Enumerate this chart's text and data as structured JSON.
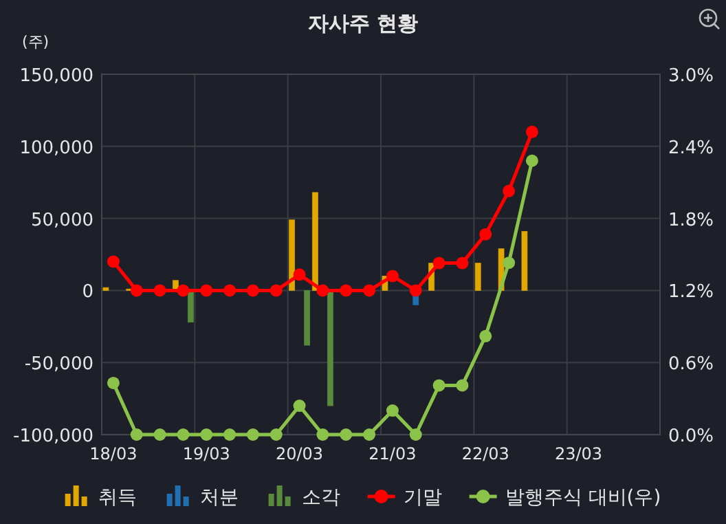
{
  "chart_data": {
    "type": "bar",
    "title": "자사주 현황",
    "ylabel": "(주)",
    "categories": [
      "18/03",
      null,
      null,
      null,
      "19/03",
      null,
      null,
      null,
      "20/03",
      null,
      null,
      null,
      "21/03",
      null,
      null,
      null,
      "22/03",
      null,
      null,
      null,
      "23/03",
      null,
      null,
      null
    ],
    "series": [
      {
        "name": "취득",
        "color": "#e0a800",
        "values": [
          2000,
          1000,
          null,
          7000,
          null,
          null,
          null,
          null,
          49000,
          68000,
          null,
          null,
          10000,
          null,
          19000,
          null,
          19000,
          29000,
          41000,
          null,
          null,
          null,
          null,
          null
        ]
      },
      {
        "name": "처분",
        "color": "#1f6fb2",
        "values": [
          null,
          null,
          null,
          null,
          null,
          null,
          null,
          null,
          null,
          null,
          null,
          null,
          null,
          -10000,
          null,
          null,
          null,
          null,
          null,
          null,
          null,
          null,
          null,
          null
        ]
      },
      {
        "name": "소각",
        "color": "#5a8a3c",
        "values": [
          null,
          null,
          null,
          -22000,
          null,
          null,
          null,
          null,
          -38000,
          -80000,
          null,
          null,
          null,
          null,
          null,
          null,
          null,
          null,
          null,
          null,
          null,
          null,
          null,
          null
        ]
      },
      {
        "name": "기말",
        "type": "line",
        "color": "#ff0000",
        "values": [
          20000,
          0,
          0,
          0,
          0,
          0,
          0,
          0,
          11000,
          0,
          0,
          0,
          10000,
          0,
          19000,
          19000,
          39000,
          69000,
          110000,
          null,
          null,
          null,
          null,
          null
        ]
      },
      {
        "name": "발행주식 대비(우)",
        "type": "line",
        "axis": "y2",
        "color": "#8bc34a",
        "values": [
          0.43,
          0,
          0,
          0,
          0,
          0,
          0,
          0,
          0.24,
          0,
          0,
          0,
          0.2,
          0,
          0.41,
          0.41,
          0.82,
          1.43,
          2.28,
          null,
          null,
          null,
          null,
          null
        ]
      }
    ],
    "ylim": [
      -100000,
      150000
    ],
    "yticks": [
      {
        "value": -100000,
        "label": "-100,000"
      },
      {
        "value": -50000,
        "label": "-50,000"
      },
      0,
      {
        "value": 50000,
        "label": "50,000"
      },
      {
        "value": 100000,
        "label": "100,000"
      },
      {
        "value": 150000,
        "label": "150,000"
      }
    ],
    "y2lim": [
      0,
      3
    ],
    "y2ticks": [
      {
        "value": 0,
        "label": "0.0%"
      },
      {
        "value": 0.6,
        "label": "0.6%"
      },
      {
        "value": 1.2,
        "label": "1.2%"
      },
      {
        "value": 1.8,
        "label": "1.8%"
      },
      {
        "value": 2.4,
        "label": "2.4%"
      },
      {
        "value": 3,
        "label": "3.0%"
      }
    ],
    "grid": true,
    "legend": "bottom",
    "marker": "circle"
  }
}
